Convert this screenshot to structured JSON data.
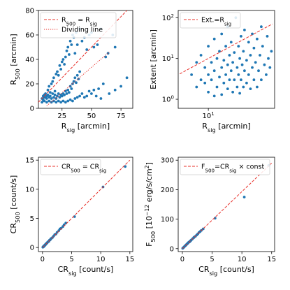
{
  "chart_data": [
    {
      "type": "scatter",
      "xlabel": {
        "base": "R",
        "sub": "sig",
        "rest": " [arcmin]"
      },
      "ylabel": {
        "base": "R",
        "sub": "500",
        "rest": " [arcmin]"
      },
      "xlim": [
        5,
        85
      ],
      "ylim": [
        0,
        80
      ],
      "xticks": [
        {
          "v": 25,
          "label": "25"
        },
        {
          "v": 50,
          "label": "50"
        },
        {
          "v": 75,
          "label": "75"
        }
      ],
      "yticks": [
        {
          "v": 0,
          "label": "0"
        },
        {
          "v": 20,
          "label": "20"
        },
        {
          "v": 40,
          "label": "40"
        },
        {
          "v": 60,
          "label": "60"
        },
        {
          "v": 80,
          "label": "80"
        }
      ],
      "lines": [
        {
          "x": [
            5,
            80
          ],
          "y": [
            5,
            80
          ],
          "style": "dashed",
          "color": "#e8302a",
          "legend": {
            "parts": [
              [
                "R",
                "500"
              ],
              [
                " = R",
                "sig"
              ]
            ]
          }
        },
        {
          "x": [
            12,
            65
          ],
          "y": [
            2,
            46
          ],
          "style": "dotted",
          "color": "#e8302a",
          "legend": {
            "parts": [
              [
                "Dividing line",
                ""
              ]
            ]
          }
        }
      ],
      "points": [
        [
          8,
          5
        ],
        [
          9,
          7
        ],
        [
          10,
          9
        ],
        [
          11,
          12
        ],
        [
          12,
          10
        ],
        [
          13,
          15
        ],
        [
          14,
          18
        ],
        [
          15,
          13
        ],
        [
          16,
          20
        ],
        [
          17,
          22
        ],
        [
          18,
          25
        ],
        [
          19,
          14
        ],
        [
          20,
          28
        ],
        [
          21,
          30
        ],
        [
          22,
          27
        ],
        [
          23,
          35
        ],
        [
          24,
          32
        ],
        [
          25,
          38
        ],
        [
          26,
          40
        ],
        [
          27,
          36
        ],
        [
          28,
          42
        ],
        [
          29,
          47
        ],
        [
          30,
          50
        ],
        [
          31,
          44
        ],
        [
          32,
          55
        ],
        [
          33,
          52
        ],
        [
          34,
          60
        ],
        [
          35,
          58
        ],
        [
          36,
          45
        ],
        [
          37,
          62
        ],
        [
          38,
          52
        ],
        [
          40,
          65
        ],
        [
          42,
          55
        ],
        [
          44,
          58
        ],
        [
          46,
          48
        ],
        [
          48,
          60
        ],
        [
          50,
          62
        ],
        [
          52,
          50
        ],
        [
          55,
          52
        ],
        [
          58,
          65
        ],
        [
          62,
          42
        ],
        [
          64,
          45
        ],
        [
          68,
          60
        ],
        [
          70,
          50
        ],
        [
          8,
          8
        ],
        [
          9,
          10
        ],
        [
          10,
          11
        ],
        [
          11,
          9
        ],
        [
          12,
          8
        ],
        [
          13,
          11
        ],
        [
          14,
          9
        ],
        [
          15,
          10
        ],
        [
          16,
          8
        ],
        [
          17,
          12
        ],
        [
          18,
          9
        ],
        [
          19,
          11
        ],
        [
          20,
          8
        ],
        [
          21,
          10
        ],
        [
          22,
          12
        ],
        [
          23,
          9
        ],
        [
          24,
          11
        ],
        [
          25,
          10
        ],
        [
          26,
          12
        ],
        [
          27,
          11
        ],
        [
          28,
          14
        ],
        [
          29,
          12
        ],
        [
          30,
          15
        ],
        [
          31,
          13
        ],
        [
          32,
          18
        ],
        [
          33,
          16
        ],
        [
          34,
          20
        ],
        [
          35,
          22
        ],
        [
          36,
          25
        ],
        [
          37,
          21
        ],
        [
          38,
          27
        ],
        [
          39,
          24
        ],
        [
          40,
          30
        ],
        [
          10,
          6
        ],
        [
          12,
          5
        ],
        [
          14,
          6
        ],
        [
          16,
          5
        ],
        [
          18,
          6
        ],
        [
          20,
          5
        ],
        [
          22,
          6
        ],
        [
          24,
          5
        ],
        [
          26,
          6
        ],
        [
          28,
          5
        ],
        [
          30,
          6
        ],
        [
          32,
          7
        ],
        [
          34,
          6
        ],
        [
          36,
          8
        ],
        [
          38,
          9
        ],
        [
          40,
          10
        ],
        [
          42,
          12
        ],
        [
          44,
          9
        ],
        [
          46,
          10
        ],
        [
          48,
          14
        ],
        [
          50,
          12
        ],
        [
          52,
          15
        ],
        [
          54,
          10
        ],
        [
          56,
          16
        ],
        [
          58,
          8
        ],
        [
          60,
          20
        ],
        [
          65,
          12
        ],
        [
          70,
          15
        ],
        [
          75,
          18
        ],
        [
          80,
          25
        ]
      ]
    },
    {
      "type": "scatter",
      "xlabel": {
        "base": "R",
        "sub": "sig",
        "rest": " [arcmin]"
      },
      "ylabel": {
        "base": "Extent [arcmin]",
        "sub": "",
        "rest": ""
      },
      "xscale": "log",
      "yscale": "log",
      "xlim": [
        4,
        75
      ],
      "ylim": [
        0.6,
        150
      ],
      "xticks": [
        {
          "v": 10,
          "base": "10",
          "sup": "1"
        }
      ],
      "yticks": [
        {
          "v": 1,
          "base": "10",
          "sup": "0"
        },
        {
          "v": 10,
          "base": "10",
          "sup": "1"
        },
        {
          "v": 100,
          "base": "10",
          "sup": "2"
        }
      ],
      "lines": [
        {
          "x": [
            4.2,
            70
          ],
          "y": [
            4.2,
            70
          ],
          "style": "dashed",
          "color": "#e8302a",
          "legend": {
            "parts": [
              [
                "Ext.=R",
                "sig"
              ]
            ]
          }
        }
      ],
      "points": [
        [
          6,
          4
        ],
        [
          7,
          2
        ],
        [
          7,
          8
        ],
        [
          8,
          3
        ],
        [
          8,
          12
        ],
        [
          9,
          2.5
        ],
        [
          9,
          6
        ],
        [
          10,
          1.5
        ],
        [
          10,
          4
        ],
        [
          10,
          20
        ],
        [
          11,
          3
        ],
        [
          11,
          8
        ],
        [
          12,
          1.2
        ],
        [
          12,
          5
        ],
        [
          12,
          30
        ],
        [
          13,
          2
        ],
        [
          13,
          10
        ],
        [
          14,
          3.5
        ],
        [
          14,
          15
        ],
        [
          15,
          1.3
        ],
        [
          15,
          6
        ],
        [
          15,
          40
        ],
        [
          16,
          2.5
        ],
        [
          16,
          9
        ],
        [
          17,
          4
        ],
        [
          17,
          20
        ],
        [
          18,
          1.8
        ],
        [
          18,
          7
        ],
        [
          18,
          60
        ],
        [
          19,
          3
        ],
        [
          19,
          12
        ],
        [
          20,
          5
        ],
        [
          20,
          25
        ],
        [
          21,
          1.5
        ],
        [
          21,
          8
        ],
        [
          22,
          3
        ],
        [
          22,
          14
        ],
        [
          23,
          100
        ],
        [
          24,
          2
        ],
        [
          24,
          6
        ],
        [
          25,
          20
        ],
        [
          25,
          4
        ],
        [
          26,
          1.4
        ],
        [
          26,
          10
        ],
        [
          27,
          3
        ],
        [
          27,
          35
        ],
        [
          28,
          7
        ],
        [
          29,
          2
        ],
        [
          29,
          15
        ],
        [
          30,
          5
        ],
        [
          30,
          50
        ],
        [
          32,
          2.5
        ],
        [
          32,
          9
        ],
        [
          34,
          4
        ],
        [
          34,
          25
        ],
        [
          36,
          1.8
        ],
        [
          36,
          12
        ],
        [
          38,
          6
        ],
        [
          38,
          40
        ],
        [
          40,
          3
        ],
        [
          40,
          18
        ],
        [
          42,
          8
        ],
        [
          44,
          2
        ],
        [
          44,
          30
        ],
        [
          46,
          5
        ],
        [
          48,
          12
        ],
        [
          50,
          3
        ],
        [
          50,
          60
        ],
        [
          52,
          20
        ],
        [
          55,
          7
        ],
        [
          58,
          4
        ],
        [
          60,
          35
        ],
        [
          62,
          10
        ],
        [
          65,
          6
        ],
        [
          68,
          15
        ]
      ]
    },
    {
      "type": "scatter",
      "xlabel": {
        "base": "CR",
        "sub": "sig",
        "rest": " [count/s]"
      },
      "ylabel": {
        "base": "CR",
        "sub": "500",
        "rest": " [count/s]"
      },
      "xlim": [
        -0.7,
        15.5
      ],
      "ylim": [
        -0.7,
        15.5
      ],
      "xticks": [
        {
          "v": 0,
          "label": "0"
        },
        {
          "v": 5,
          "label": "5"
        },
        {
          "v": 10,
          "label": "10"
        },
        {
          "v": 15,
          "label": "15"
        }
      ],
      "yticks": [
        {
          "v": 0,
          "label": "0"
        },
        {
          "v": 5,
          "label": "5"
        },
        {
          "v": 10,
          "label": "10"
        },
        {
          "v": 15,
          "label": "15"
        }
      ],
      "lines": [
        {
          "x": [
            0,
            15
          ],
          "y": [
            0,
            15
          ],
          "style": "dashed",
          "color": "#e8302a",
          "legend": {
            "parts": [
              [
                "CR",
                "500"
              ],
              [
                " = CR",
                "sig"
              ]
            ]
          }
        }
      ],
      "points": [
        [
          0.05,
          0.05
        ],
        [
          0.1,
          0.12
        ],
        [
          0.15,
          0.1
        ],
        [
          0.2,
          0.22
        ],
        [
          0.25,
          0.2
        ],
        [
          0.3,
          0.3
        ],
        [
          0.35,
          0.33
        ],
        [
          0.4,
          0.42
        ],
        [
          0.45,
          0.4
        ],
        [
          0.5,
          0.5
        ],
        [
          0.55,
          0.58
        ],
        [
          0.6,
          0.6
        ],
        [
          0.7,
          0.72
        ],
        [
          0.8,
          0.8
        ],
        [
          0.9,
          0.95
        ],
        [
          1.0,
          1.0
        ],
        [
          1.1,
          1.05
        ],
        [
          1.2,
          1.25
        ],
        [
          1.3,
          1.3
        ],
        [
          1.4,
          1.45
        ],
        [
          1.5,
          1.55
        ],
        [
          1.7,
          1.7
        ],
        [
          1.9,
          1.95
        ],
        [
          2.1,
          2.2
        ],
        [
          2.3,
          2.3
        ],
        [
          2.5,
          2.6
        ],
        [
          2.8,
          2.9
        ],
        [
          3.0,
          3.2
        ],
        [
          3.2,
          3.3
        ],
        [
          3.5,
          3.6
        ],
        [
          3.7,
          3.9
        ],
        [
          4.0,
          4.2
        ],
        [
          5.5,
          5.3
        ],
        [
          10.4,
          10.4
        ],
        [
          14.2,
          13.9
        ]
      ]
    },
    {
      "type": "scatter",
      "xlabel": {
        "base": "CR",
        "sub": "sig",
        "rest": " [count/s]"
      },
      "ylabel": {
        "base": "F",
        "sub": "500",
        "rest": " [10",
        "sup": "−12",
        "rest2": " erg/s/cm",
        "sup2": "2",
        "end": "]"
      },
      "xlim": [
        -0.7,
        15.5
      ],
      "ylim": [
        -10,
        310
      ],
      "xticks": [
        {
          "v": 0,
          "label": "0"
        },
        {
          "v": 5,
          "label": "5"
        },
        {
          "v": 10,
          "label": "10"
        },
        {
          "v": 15,
          "label": "15"
        }
      ],
      "yticks": [
        {
          "v": 0,
          "label": "0"
        },
        {
          "v": 100,
          "label": "100"
        },
        {
          "v": 200,
          "label": "200"
        },
        {
          "v": 300,
          "label": "300"
        }
      ],
      "lines": [
        {
          "x": [
            0,
            15
          ],
          "y": [
            0,
            290
          ],
          "style": "dashed",
          "color": "#e8302a",
          "legend": {
            "parts": [
              [
                "F",
                "500"
              ],
              [
                "=CR",
                "sig"
              ],
              [
                " × const",
                ""
              ]
            ]
          }
        }
      ],
      "points": [
        [
          0.05,
          1
        ],
        [
          0.1,
          2
        ],
        [
          0.2,
          4
        ],
        [
          0.3,
          6
        ],
        [
          0.4,
          8
        ],
        [
          0.5,
          10
        ],
        [
          0.6,
          12
        ],
        [
          0.7,
          14
        ],
        [
          0.8,
          16
        ],
        [
          0.9,
          18
        ],
        [
          1.0,
          20
        ],
        [
          1.1,
          22
        ],
        [
          1.2,
          23
        ],
        [
          1.3,
          25
        ],
        [
          1.4,
          27
        ],
        [
          1.5,
          29
        ],
        [
          1.7,
          33
        ],
        [
          1.9,
          37
        ],
        [
          2.0,
          39
        ],
        [
          2.2,
          42
        ],
        [
          2.4,
          46
        ],
        [
          2.6,
          50
        ],
        [
          2.8,
          55
        ],
        [
          3.0,
          58
        ],
        [
          3.2,
          62
        ],
        [
          3.5,
          67
        ],
        [
          5.5,
          103
        ],
        [
          10.4,
          175
        ],
        [
          14.5,
          282
        ]
      ]
    }
  ]
}
